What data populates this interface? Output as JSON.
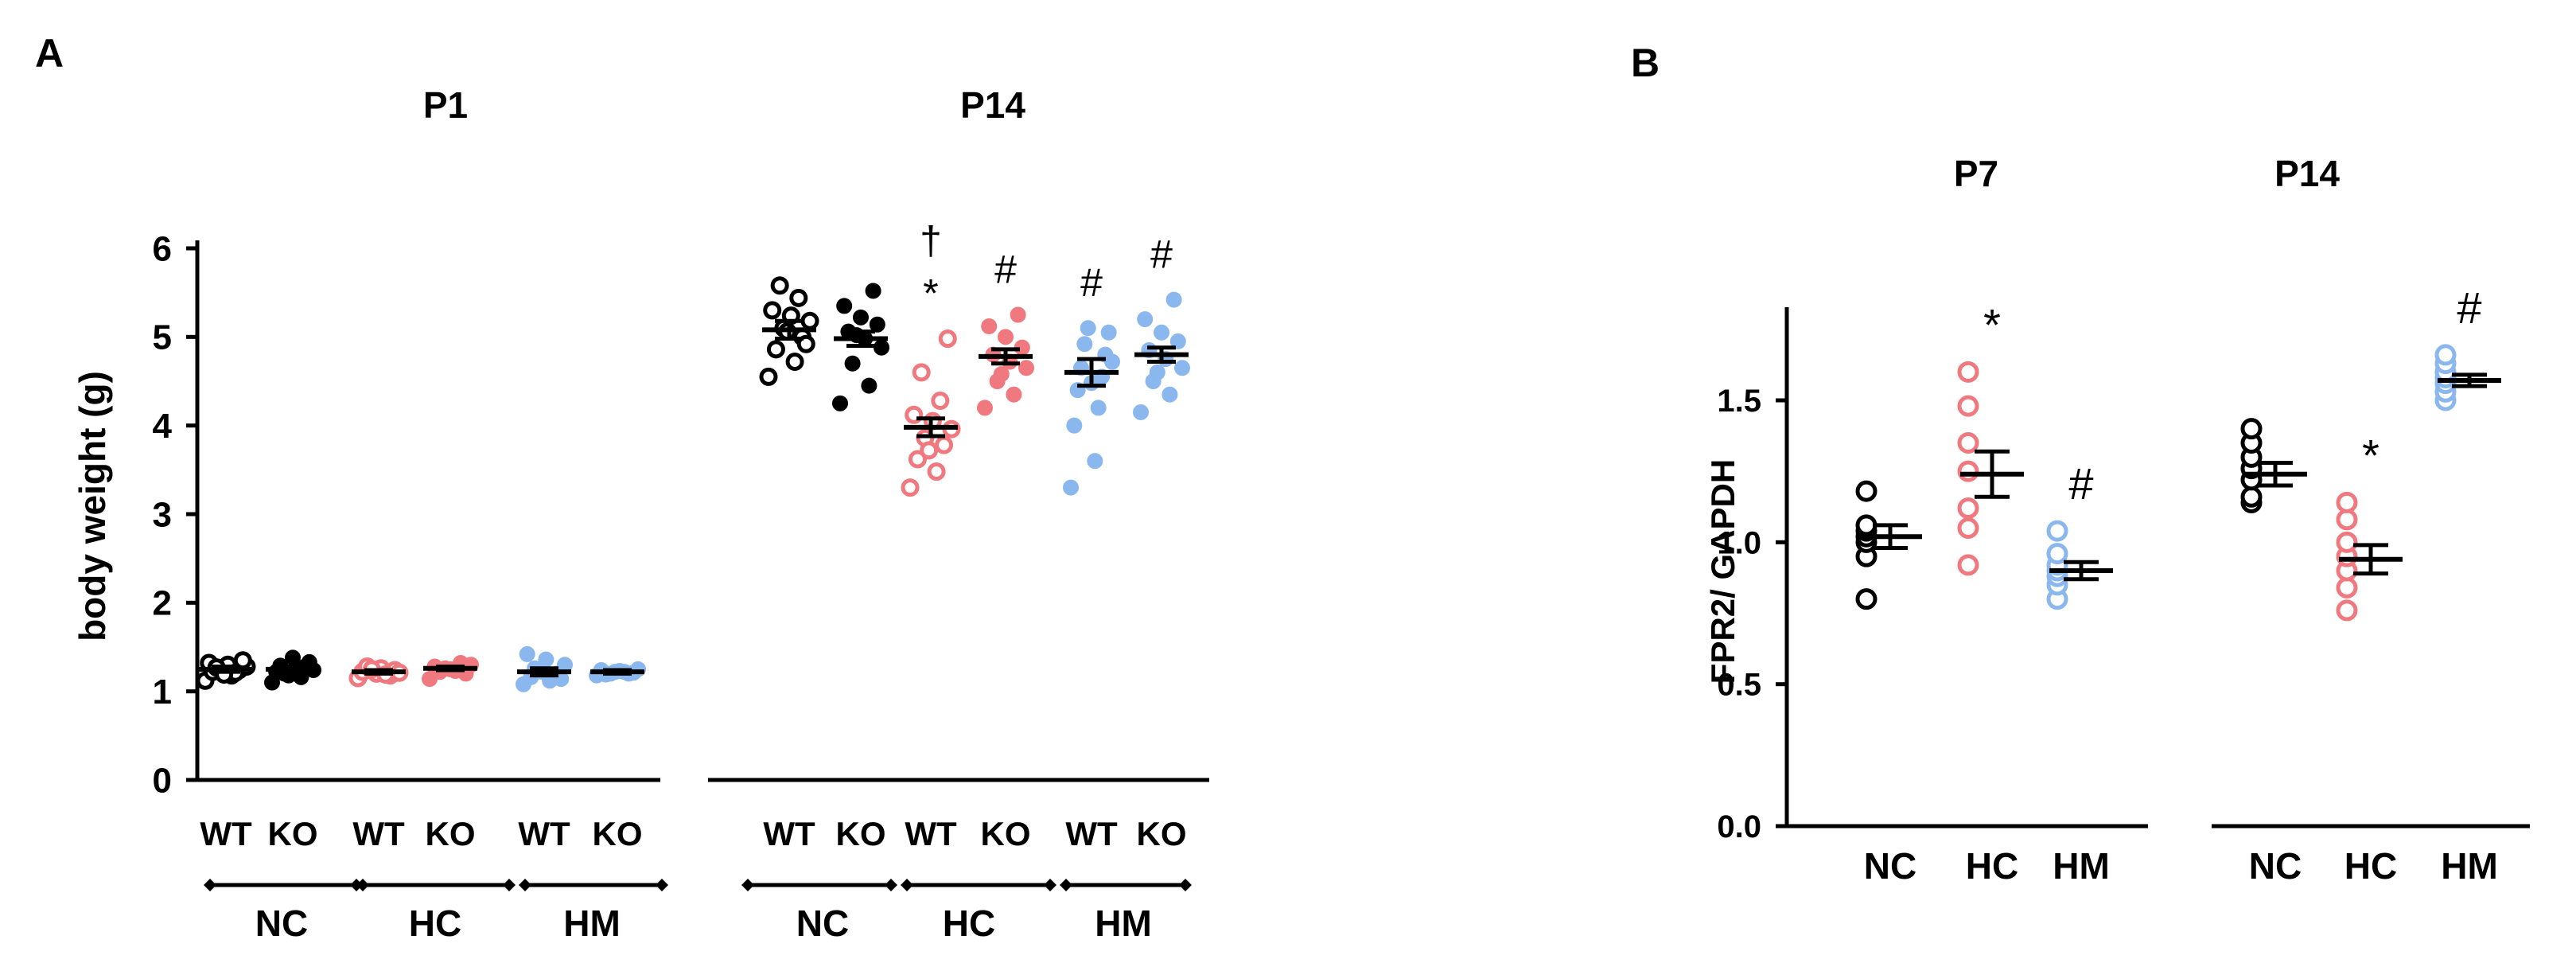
{
  "colors": {
    "NC": "#000000",
    "HC": "#f0787f",
    "HM": "#8ab8ee"
  },
  "chart_data": [
    {
      "panel": "A",
      "type": "scatter",
      "ylabel": "body weight (g)",
      "ylim": [
        0,
        6
      ],
      "yticks": [
        "0",
        "1",
        "2",
        "3",
        "4",
        "5",
        "6"
      ],
      "groups": [
        {
          "title": "P1",
          "categories": [
            {
              "label": "WT",
              "cond": "NC",
              "filled": false,
              "mean": 1.25,
              "sem": 0.03,
              "points": [
                1.12,
                1.18,
                1.22,
                1.24,
                1.26,
                1.28,
                1.3,
                1.32,
                1.21,
                1.27,
                1.35,
                1.19
              ],
              "marks": []
            },
            {
              "label": "KO",
              "cond": "NC",
              "filled": true,
              "mean": 1.25,
              "sem": 0.03,
              "points": [
                1.1,
                1.16,
                1.2,
                1.24,
                1.26,
                1.29,
                1.33,
                1.38,
                1.22,
                1.28,
                1.18
              ],
              "marks": []
            },
            {
              "label": "WT",
              "cond": "HC",
              "filled": false,
              "mean": 1.22,
              "sem": 0.02,
              "points": [
                1.15,
                1.18,
                1.2,
                1.22,
                1.24,
                1.26,
                1.28,
                1.21,
                1.19,
                1.25
              ],
              "marks": []
            },
            {
              "label": "KO",
              "cond": "HC",
              "filled": true,
              "mean": 1.26,
              "sem": 0.02,
              "points": [
                1.14,
                1.2,
                1.23,
                1.26,
                1.28,
                1.3,
                1.32,
                1.25,
                1.22
              ],
              "marks": []
            },
            {
              "label": "WT",
              "cond": "HM",
              "filled": true,
              "mean": 1.22,
              "sem": 0.04,
              "points": [
                1.08,
                1.12,
                1.16,
                1.2,
                1.24,
                1.3,
                1.36,
                1.42,
                1.18,
                1.26,
                1.14,
                1.22
              ],
              "marks": []
            },
            {
              "label": "KO",
              "cond": "HM",
              "filled": true,
              "mean": 1.22,
              "sem": 0.02,
              "points": [
                1.18,
                1.2,
                1.22,
                1.24,
                1.21,
                1.23,
                1.19,
                1.25,
                1.22,
                1.2
              ],
              "marks": []
            }
          ]
        },
        {
          "title": "P14",
          "categories": [
            {
              "label": "WT",
              "cond": "NC",
              "filled": false,
              "mean": 5.08,
              "sem": 0.1,
              "points": [
                4.55,
                4.72,
                4.86,
                5.0,
                5.1,
                5.18,
                5.24,
                5.3,
                5.44,
                5.58,
                4.92,
                5.06
              ],
              "marks": []
            },
            {
              "label": "KO",
              "cond": "NC",
              "filled": true,
              "mean": 4.98,
              "sem": 0.08,
              "points": [
                4.25,
                4.45,
                4.7,
                4.88,
                4.98,
                5.06,
                5.14,
                5.22,
                5.35,
                5.52,
                5.02
              ],
              "marks": []
            },
            {
              "label": "WT",
              "cond": "HC",
              "filled": false,
              "mean": 3.98,
              "sem": 0.1,
              "points": [
                3.3,
                3.48,
                3.62,
                3.78,
                3.86,
                3.96,
                4.05,
                4.12,
                4.28,
                4.6,
                4.98,
                3.72
              ],
              "marks": [
                "†",
                "*"
              ]
            },
            {
              "label": "KO",
              "cond": "HC",
              "filled": true,
              "mean": 4.78,
              "sem": 0.08,
              "points": [
                4.2,
                4.35,
                4.5,
                4.65,
                4.72,
                4.8,
                4.88,
                5.0,
                5.12,
                5.25,
                4.58
              ],
              "marks": [
                "#"
              ]
            },
            {
              "label": "WT",
              "cond": "HM",
              "filled": true,
              "mean": 4.6,
              "sem": 0.15,
              "points": [
                3.3,
                3.6,
                4.0,
                4.2,
                4.4,
                4.55,
                4.65,
                4.8,
                4.92,
                5.05,
                5.1,
                4.72,
                4.48
              ],
              "marks": [
                "#"
              ]
            },
            {
              "label": "KO",
              "cond": "HM",
              "filled": true,
              "mean": 4.8,
              "sem": 0.08,
              "points": [
                4.15,
                4.35,
                4.5,
                4.65,
                4.75,
                4.85,
                4.95,
                5.05,
                5.2,
                5.42,
                4.6
              ],
              "marks": [
                "#"
              ]
            }
          ]
        }
      ],
      "conditions": [
        "NC",
        "HC",
        "HM",
        "NC",
        "HC",
        "HM"
      ]
    },
    {
      "panel": "B",
      "type": "scatter",
      "ylabel": "FPR2/ GAPDH",
      "ylim": [
        0,
        1.8
      ],
      "yticks": [
        "0.0",
        "0.5",
        "1.0",
        "1.5"
      ],
      "groups": [
        {
          "title": "P7",
          "categories": [
            {
              "label": "NC",
              "cond": "NC",
              "filled": false,
              "mean": 1.02,
              "sem": 0.04,
              "points": [
                0.8,
                0.95,
                1.0,
                1.02,
                1.04,
                1.06,
                1.18
              ],
              "marks": []
            },
            {
              "label": "HC",
              "cond": "HC",
              "filled": false,
              "mean": 1.24,
              "sem": 0.08,
              "points": [
                0.92,
                1.05,
                1.12,
                1.25,
                1.35,
                1.48,
                1.6
              ],
              "marks": [
                "*"
              ]
            },
            {
              "label": "HM",
              "cond": "HM",
              "filled": false,
              "mean": 0.9,
              "sem": 0.03,
              "points": [
                0.8,
                0.85,
                0.88,
                0.9,
                0.92,
                0.96,
                1.04
              ],
              "marks": [
                "#"
              ]
            }
          ]
        },
        {
          "title": "P14",
          "categories": [
            {
              "label": "NC",
              "cond": "NC",
              "filled": false,
              "mean": 1.24,
              "sem": 0.04,
              "points": [
                1.14,
                1.16,
                1.22,
                1.26,
                1.3,
                1.35,
                1.4
              ],
              "marks": []
            },
            {
              "label": "HC",
              "cond": "HC",
              "filled": false,
              "mean": 0.94,
              "sem": 0.05,
              "points": [
                0.76,
                0.84,
                0.9,
                0.95,
                1.0,
                1.08,
                1.14
              ],
              "marks": [
                "*"
              ]
            },
            {
              "label": "HM",
              "cond": "HM",
              "filled": false,
              "mean": 1.57,
              "sem": 0.02,
              "points": [
                1.5,
                1.53,
                1.56,
                1.58,
                1.6,
                1.63,
                1.66
              ],
              "marks": [
                "#"
              ]
            }
          ]
        }
      ]
    }
  ]
}
